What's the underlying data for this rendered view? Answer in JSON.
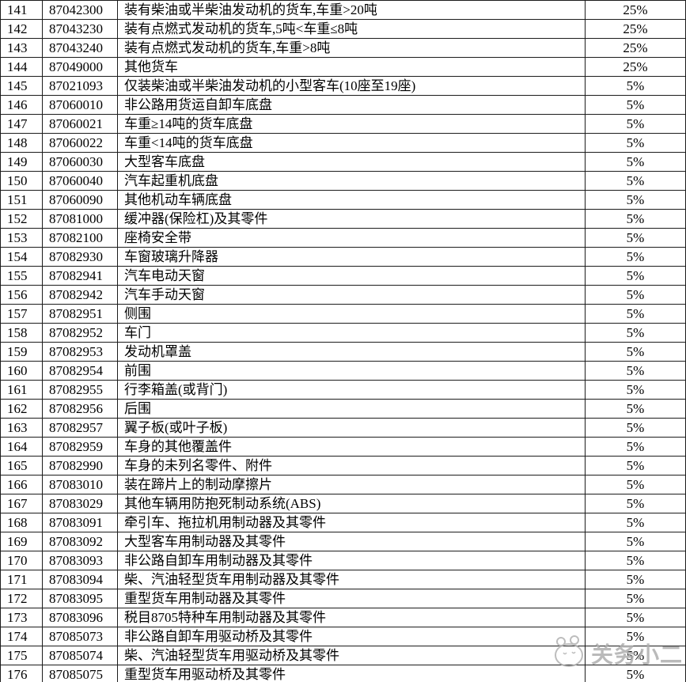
{
  "table": {
    "rows": [
      {
        "no": "141",
        "code": "87042300",
        "desc": "装有柴油或半柴油发动机的货车,车重>20吨",
        "rate": "25%"
      },
      {
        "no": "142",
        "code": "87043230",
        "desc": "装有点燃式发动机的货车,5吨<车重≤8吨",
        "rate": "25%"
      },
      {
        "no": "143",
        "code": "87043240",
        "desc": "装有点燃式发动机的货车,车重>8吨",
        "rate": "25%"
      },
      {
        "no": "144",
        "code": "87049000",
        "desc": "其他货车",
        "rate": "25%"
      },
      {
        "no": "145",
        "code": "87021093",
        "desc": "仅装柴油或半柴油发动机的小型客车(10座至19座)",
        "rate": "5%"
      },
      {
        "no": "146",
        "code": "87060010",
        "desc": "非公路用货运自卸车底盘",
        "rate": "5%"
      },
      {
        "no": "147",
        "code": "87060021",
        "desc": "车重≥14吨的货车底盘",
        "rate": "5%"
      },
      {
        "no": "148",
        "code": "87060022",
        "desc": "车重<14吨的货车底盘",
        "rate": "5%"
      },
      {
        "no": "149",
        "code": "87060030",
        "desc": "大型客车底盘",
        "rate": "5%"
      },
      {
        "no": "150",
        "code": "87060040",
        "desc": "汽车起重机底盘",
        "rate": "5%"
      },
      {
        "no": "151",
        "code": "87060090",
        "desc": "其他机动车辆底盘",
        "rate": "5%"
      },
      {
        "no": "152",
        "code": "87081000",
        "desc": "缓冲器(保险杠)及其零件",
        "rate": "5%"
      },
      {
        "no": "153",
        "code": "87082100",
        "desc": "座椅安全带",
        "rate": "5%"
      },
      {
        "no": "154",
        "code": "87082930",
        "desc": "车窗玻璃升降器",
        "rate": "5%"
      },
      {
        "no": "155",
        "code": "87082941",
        "desc": "汽车电动天窗",
        "rate": "5%"
      },
      {
        "no": "156",
        "code": "87082942",
        "desc": "汽车手动天窗",
        "rate": "5%"
      },
      {
        "no": "157",
        "code": "87082951",
        "desc": "侧围",
        "rate": "5%"
      },
      {
        "no": "158",
        "code": "87082952",
        "desc": "车门",
        "rate": "5%"
      },
      {
        "no": "159",
        "code": "87082953",
        "desc": "发动机罩盖",
        "rate": "5%"
      },
      {
        "no": "160",
        "code": "87082954",
        "desc": "前围",
        "rate": "5%"
      },
      {
        "no": "161",
        "code": "87082955",
        "desc": "行李箱盖(或背门)",
        "rate": "5%"
      },
      {
        "no": "162",
        "code": "87082956",
        "desc": "后围",
        "rate": "5%"
      },
      {
        "no": "163",
        "code": "87082957",
        "desc": "翼子板(或叶子板)",
        "rate": "5%"
      },
      {
        "no": "164",
        "code": "87082959",
        "desc": "车身的其他覆盖件",
        "rate": "5%"
      },
      {
        "no": "165",
        "code": "87082990",
        "desc": "车身的未列名零件、附件",
        "rate": "5%"
      },
      {
        "no": "166",
        "code": "87083010",
        "desc": "装在蹄片上的制动摩擦片",
        "rate": "5%"
      },
      {
        "no": "167",
        "code": "87083029",
        "desc": "其他车辆用防抱死制动系统(ABS)",
        "rate": "5%"
      },
      {
        "no": "168",
        "code": "87083091",
        "desc": "牵引车、拖拉机用制动器及其零件",
        "rate": "5%"
      },
      {
        "no": "169",
        "code": "87083092",
        "desc": "大型客车用制动器及其零件",
        "rate": "5%"
      },
      {
        "no": "170",
        "code": "87083093",
        "desc": "非公路自卸车用制动器及其零件",
        "rate": "5%"
      },
      {
        "no": "171",
        "code": "87083094",
        "desc": "柴、汽油轻型货车用制动器及其零件",
        "rate": "5%"
      },
      {
        "no": "172",
        "code": "87083095",
        "desc": "重型货车用制动器及其零件",
        "rate": "5%"
      },
      {
        "no": "173",
        "code": "87083096",
        "desc": "税目8705特种车用制动器及其零件",
        "rate": "5%"
      },
      {
        "no": "174",
        "code": "87085073",
        "desc": "非公路自卸车用驱动桥及其零件",
        "rate": "5%"
      },
      {
        "no": "175",
        "code": "87085074",
        "desc": "柴、汽油轻型货车用驱动桥及其零件",
        "rate": "5%"
      },
      {
        "no": "176",
        "code": "87085075",
        "desc": "重型货车用驱动桥及其零件",
        "rate": "5%"
      }
    ]
  },
  "watermark": {
    "text": "关务小二",
    "color": "#aeaeae"
  }
}
